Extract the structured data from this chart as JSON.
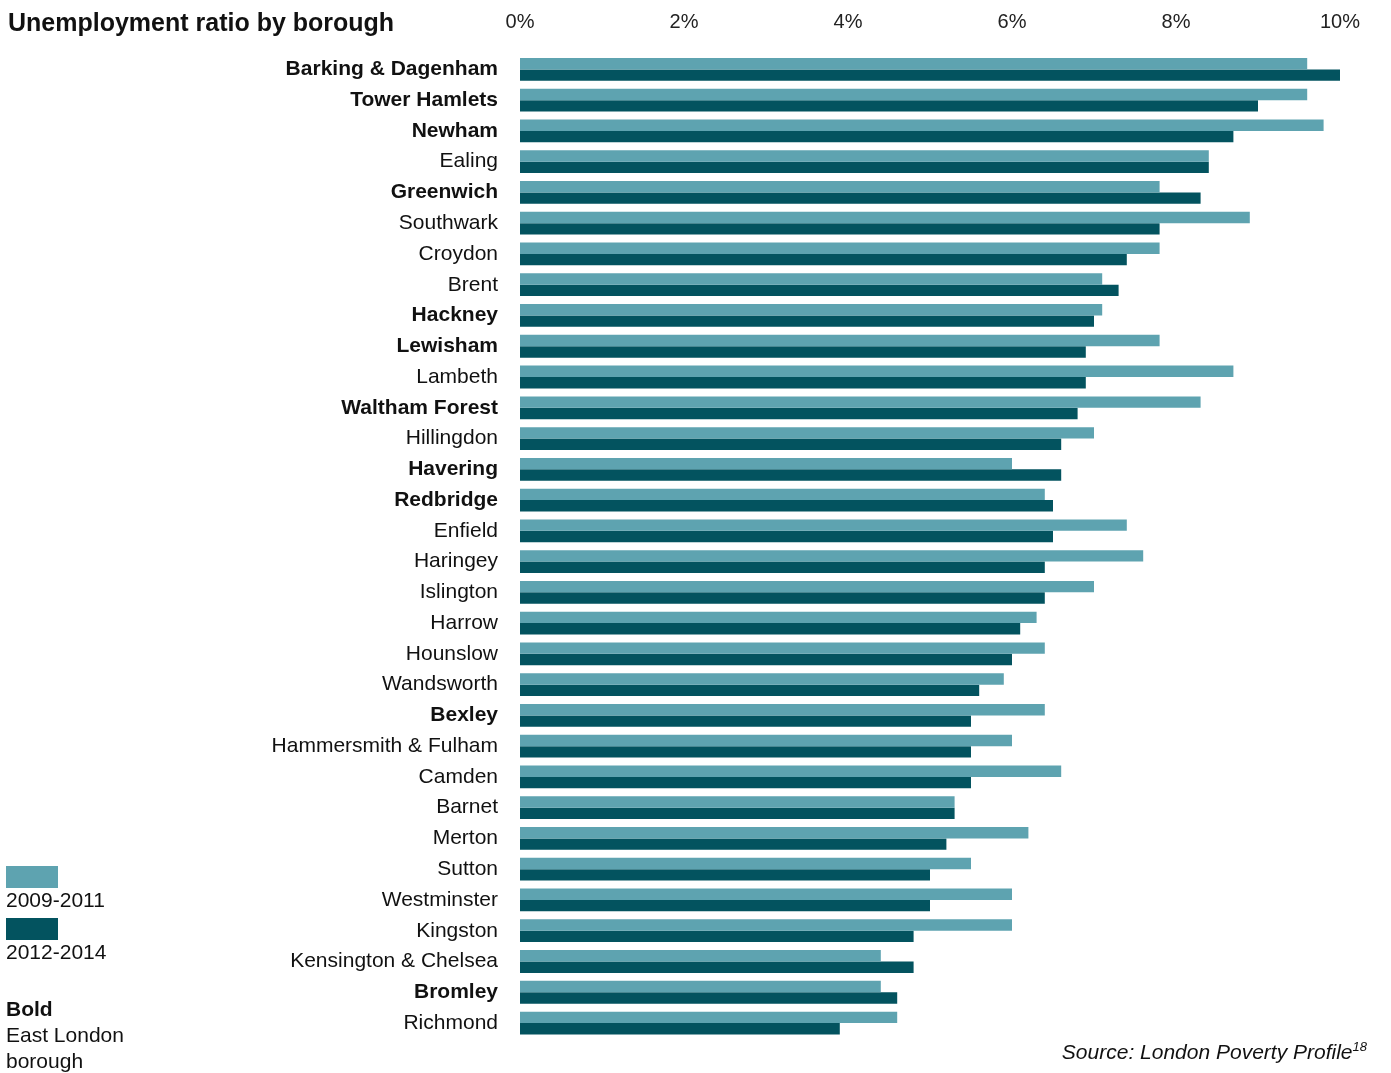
{
  "chart_data": {
    "type": "bar",
    "orientation": "horizontal",
    "title": "Unemployment ratio by borough",
    "categories": [
      "Barking & Dagenham",
      "Tower Hamlets",
      "Newham",
      "Ealing",
      "Greenwich",
      "Southwark",
      "Croydon",
      "Brent",
      "Hackney",
      "Lewisham",
      "Lambeth",
      "Waltham Forest",
      "Hillingdon",
      "Havering",
      "Redbridge",
      "Enfield",
      "Haringey",
      "Islington",
      "Harrow",
      "Hounslow",
      "Wandsworth",
      "Bexley",
      "Hammersmith & Fulham",
      "Camden",
      "Barnet",
      "Merton",
      "Sutton",
      "Westminster",
      "Kingston",
      "Kensington & Chelsea",
      "Bromley",
      "Richmond"
    ],
    "series": [
      {
        "name": "2009-2011",
        "color": "#5ea3b0",
        "values": [
          9.6,
          9.6,
          9.8,
          8.4,
          7.8,
          8.9,
          7.8,
          7.1,
          7.1,
          7.8,
          8.7,
          8.3,
          7.0,
          6.0,
          6.4,
          7.4,
          7.6,
          7.0,
          6.3,
          6.4,
          5.9,
          6.4,
          6.0,
          6.6,
          5.3,
          6.2,
          5.5,
          6.0,
          6.0,
          4.4,
          4.4,
          4.6
        ]
      },
      {
        "name": "2012-2014",
        "color": "#03535f",
        "values": [
          10.0,
          9.0,
          8.7,
          8.4,
          8.3,
          7.8,
          7.4,
          7.3,
          7.0,
          6.9,
          6.9,
          6.8,
          6.6,
          6.6,
          6.5,
          6.5,
          6.4,
          6.4,
          6.1,
          6.0,
          5.6,
          5.5,
          5.5,
          5.5,
          5.3,
          5.2,
          5.0,
          5.0,
          4.8,
          4.8,
          4.6,
          3.9
        ]
      }
    ],
    "xlim": [
      0,
      10
    ],
    "xticks": [
      {
        "value": 0,
        "label": "0%"
      },
      {
        "value": 2,
        "label": "2%"
      },
      {
        "value": 4,
        "label": "4%"
      },
      {
        "value": 6,
        "label": "6%"
      },
      {
        "value": 8,
        "label": "8%"
      },
      {
        "value": 10,
        "label": "10%"
      }
    ],
    "grid": false,
    "legend": "bottom left",
    "annotations": [
      "Bold East London borough",
      "Source: London Poverty Profile$^{18}$"
    ]
  }
}
